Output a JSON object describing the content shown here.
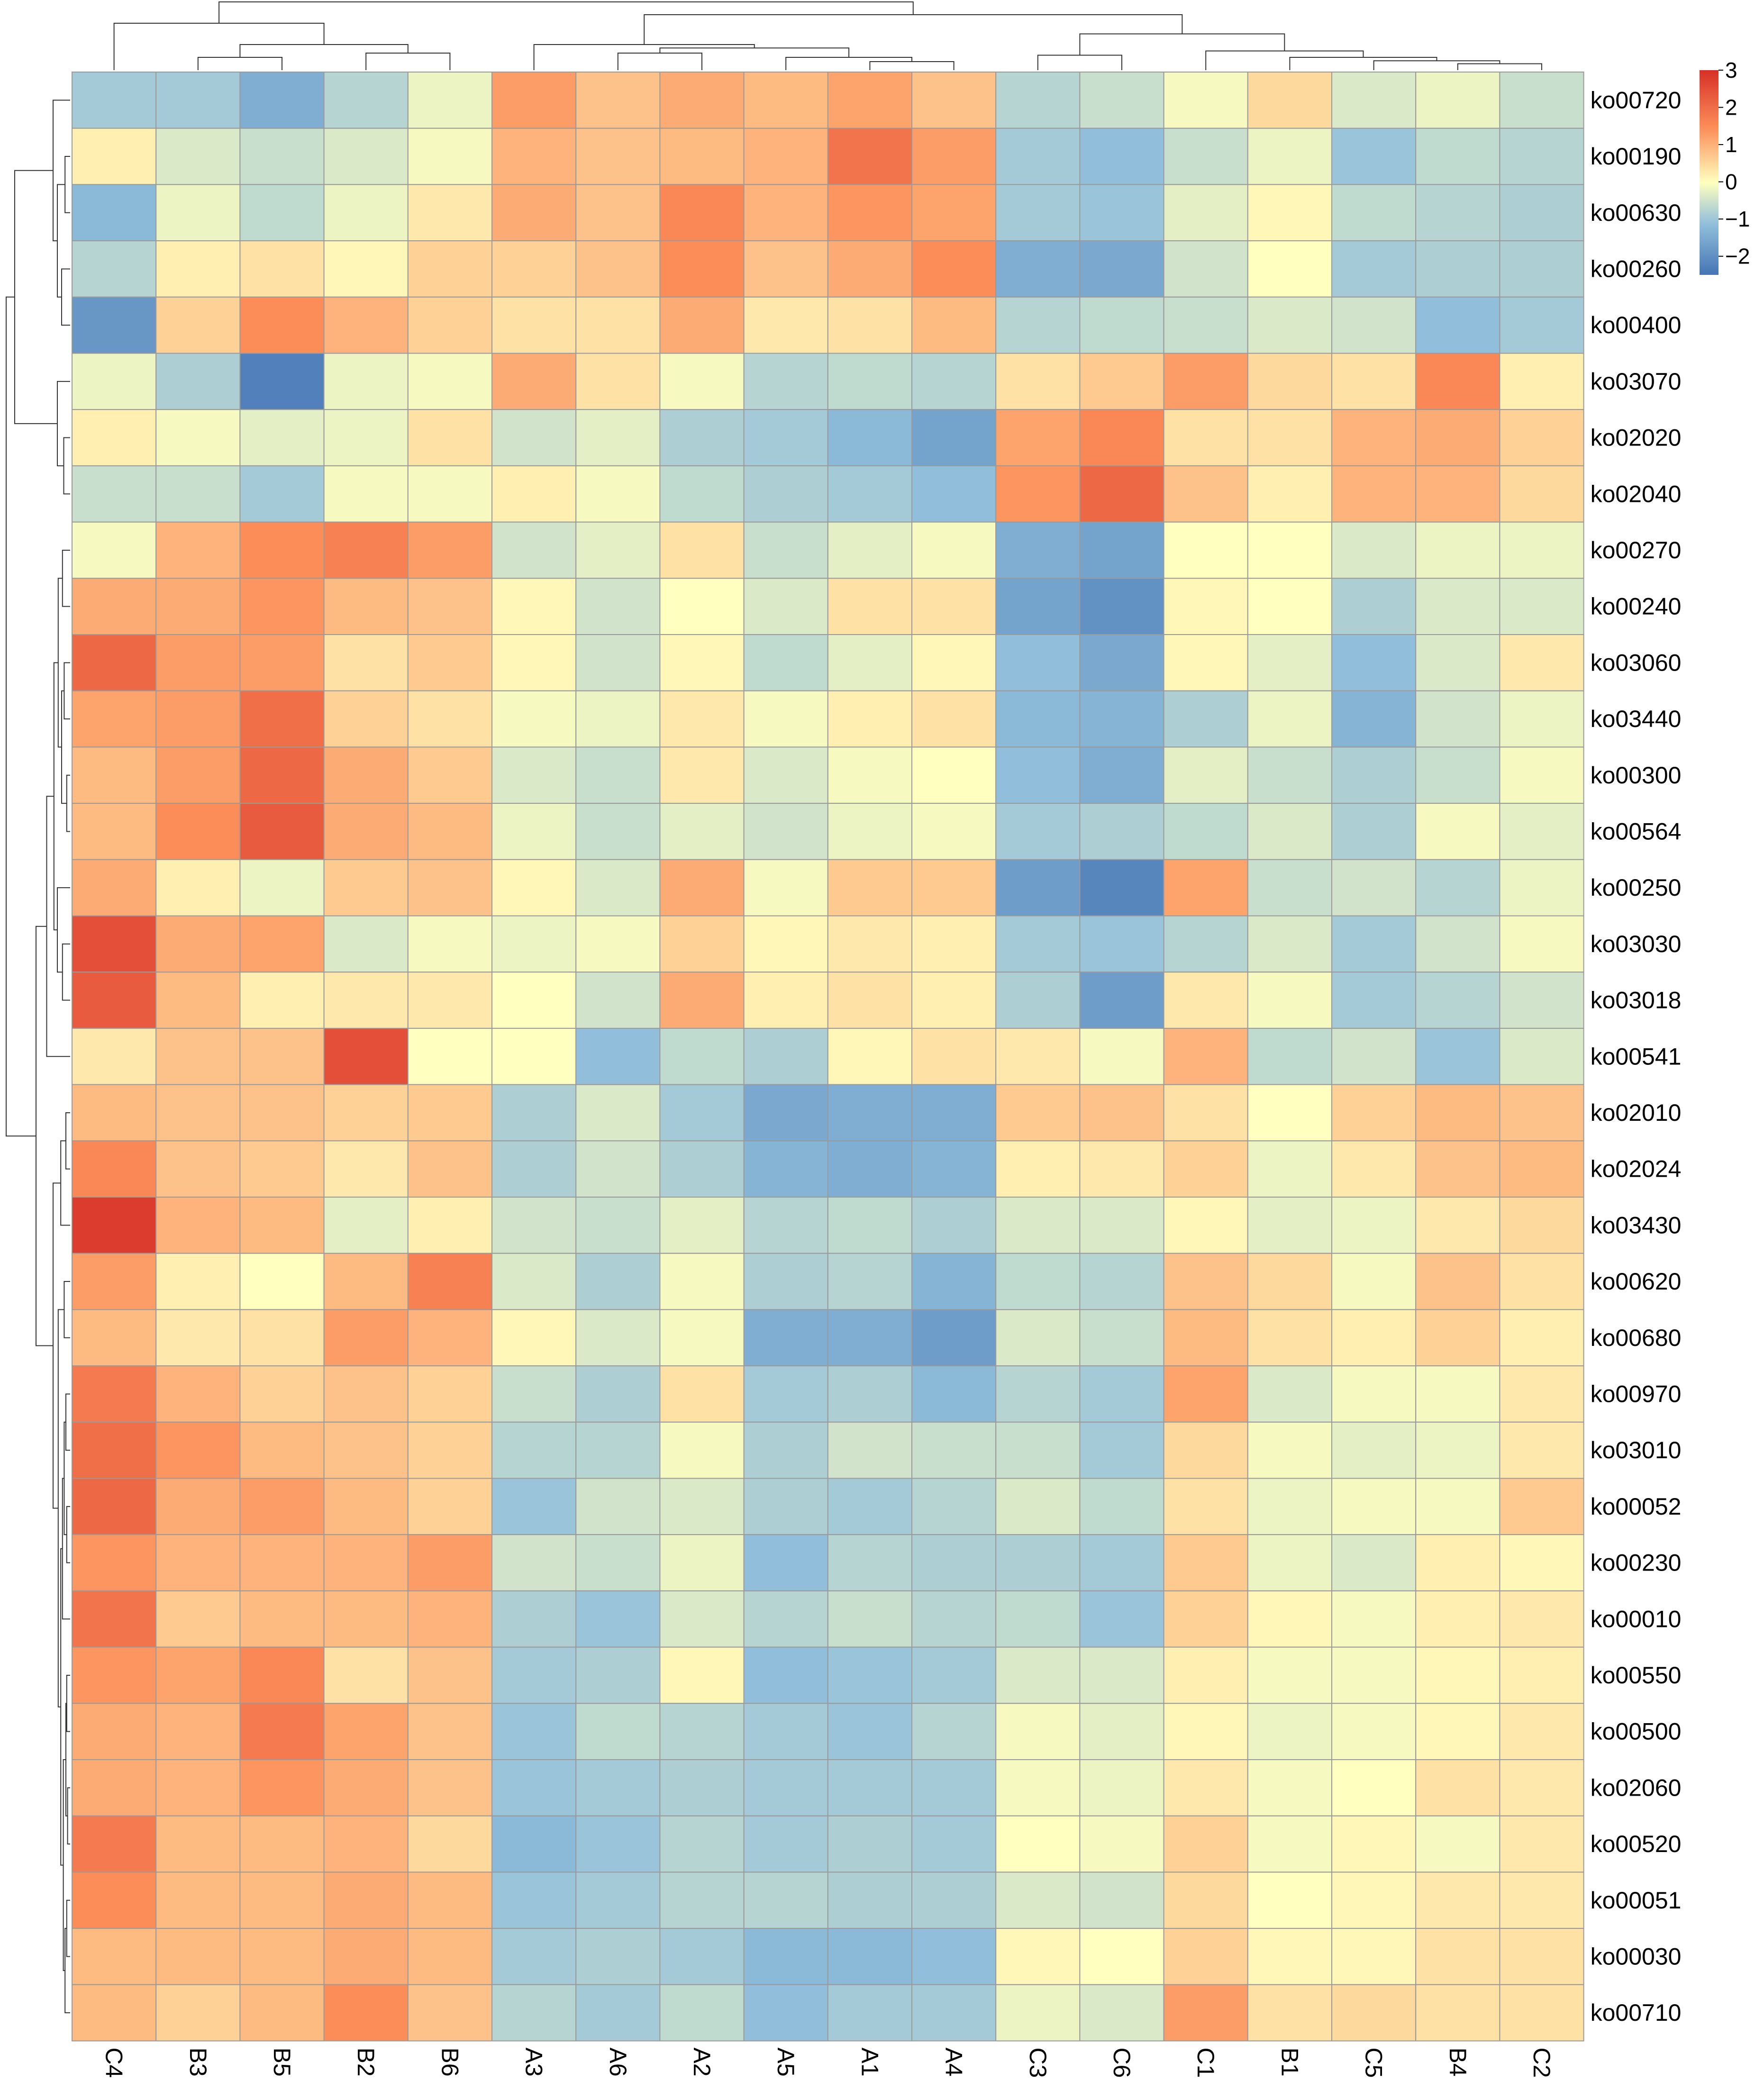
{
  "chart_data": {
    "type": "heatmap",
    "title": "",
    "xlabel": "",
    "ylabel": "",
    "columns": [
      "C4",
      "B3",
      "B5",
      "B2",
      "B6",
      "A3",
      "A6",
      "A2",
      "A5",
      "A1",
      "A4",
      "C3",
      "C6",
      "C1",
      "B1",
      "C5",
      "B4",
      "C2"
    ],
    "rows": [
      "ko00720",
      "ko00190",
      "ko00630",
      "ko00260",
      "ko00400",
      "ko03070",
      "ko02020",
      "ko02040",
      "ko00270",
      "ko00240",
      "ko03060",
      "ko03440",
      "ko00300",
      "ko00564",
      "ko00250",
      "ko03030",
      "ko03018",
      "ko00541",
      "ko02010",
      "ko02024",
      "ko03430",
      "ko00620",
      "ko00680",
      "ko00970",
      "ko03010",
      "ko00052",
      "ko00230",
      "ko00010",
      "ko00550",
      "ko00500",
      "ko02060",
      "ko00520",
      "ko00051",
      "ko00030",
      "ko00710"
    ],
    "values": [
      [
        -1.0,
        -1.0,
        -1.5,
        -0.8,
        -0.2,
        1.3,
        0.8,
        1.1,
        0.9,
        1.2,
        0.8,
        -0.8,
        -0.6,
        -0.1,
        0.5,
        -0.4,
        -0.2,
        -0.6
      ],
      [
        0.2,
        -0.4,
        -0.6,
        -0.4,
        -0.1,
        1.0,
        0.8,
        0.9,
        1.0,
        1.9,
        1.3,
        -1.0,
        -1.2,
        -0.6,
        -0.2,
        -1.1,
        -0.7,
        -0.8
      ],
      [
        -1.3,
        -0.2,
        -0.7,
        -0.2,
        0.3,
        1.1,
        0.8,
        1.6,
        1.0,
        1.4,
        1.2,
        -1.0,
        -1.1,
        -0.3,
        0.1,
        -0.7,
        -0.8,
        -0.9
      ],
      [
        -0.8,
        0.2,
        0.4,
        0.1,
        0.6,
        0.6,
        0.8,
        1.5,
        0.8,
        1.1,
        1.5,
        -1.5,
        -1.6,
        -0.5,
        0.0,
        -1.0,
        -0.9,
        -0.9
      ],
      [
        -1.9,
        0.6,
        1.5,
        1.0,
        0.6,
        0.4,
        0.4,
        1.1,
        0.3,
        0.4,
        0.9,
        -0.8,
        -0.7,
        -0.6,
        -0.4,
        -0.5,
        -1.2,
        -1.0
      ],
      [
        -0.2,
        -0.9,
        -2.3,
        -0.2,
        -0.1,
        1.1,
        0.4,
        -0.1,
        -0.8,
        -0.7,
        -0.8,
        0.4,
        0.7,
        1.3,
        0.5,
        0.4,
        1.6,
        0.2
      ],
      [
        0.2,
        -0.1,
        -0.3,
        -0.2,
        0.4,
        -0.5,
        -0.3,
        -0.9,
        -1.0,
        -1.3,
        -1.7,
        1.2,
        1.6,
        0.4,
        0.4,
        1.0,
        1.1,
        0.6
      ],
      [
        -0.6,
        -0.6,
        -1.0,
        -0.1,
        -0.1,
        0.2,
        -0.1,
        -0.7,
        -0.9,
        -1.0,
        -1.2,
        1.4,
        2.1,
        0.8,
        0.2,
        1.0,
        1.0,
        0.5
      ],
      [
        -0.1,
        1.0,
        1.5,
        1.7,
        1.3,
        -0.5,
        -0.3,
        0.4,
        -0.6,
        -0.3,
        -0.1,
        -1.5,
        -1.7,
        0.0,
        0.0,
        -0.4,
        -0.2,
        -0.2
      ],
      [
        1.1,
        1.1,
        1.4,
        0.9,
        0.8,
        0.1,
        -0.5,
        0.0,
        -0.4,
        0.4,
        0.4,
        -1.7,
        -2.0,
        0.1,
        0.0,
        -0.9,
        -0.4,
        -0.4
      ],
      [
        2.1,
        1.3,
        1.3,
        0.4,
        0.7,
        0.1,
        -0.5,
        0.1,
        -0.7,
        -0.3,
        0.1,
        -1.2,
        -1.6,
        0.1,
        -0.3,
        -1.2,
        -0.4,
        0.3
      ],
      [
        1.2,
        1.3,
        2.0,
        0.6,
        0.4,
        -0.1,
        -0.2,
        0.3,
        -0.1,
        0.2,
        0.4,
        -1.3,
        -1.4,
        -0.9,
        -0.2,
        -1.4,
        -0.5,
        -0.2
      ],
      [
        0.9,
        1.3,
        2.1,
        1.1,
        0.7,
        -0.4,
        -0.6,
        0.3,
        -0.4,
        -0.1,
        0.0,
        -1.2,
        -1.5,
        -0.3,
        -0.6,
        -0.9,
        -0.6,
        -0.1
      ],
      [
        0.9,
        1.5,
        2.3,
        1.1,
        0.9,
        -0.2,
        -0.6,
        -0.3,
        -0.5,
        -0.2,
        -0.1,
        -1.0,
        -0.9,
        -0.7,
        -0.4,
        -0.9,
        -0.1,
        -0.3
      ],
      [
        1.1,
        0.2,
        -0.2,
        0.7,
        0.8,
        0.1,
        -0.4,
        1.1,
        -0.1,
        0.7,
        0.7,
        -1.8,
        -2.2,
        1.2,
        -0.6,
        -0.5,
        -0.8,
        -0.2
      ],
      [
        2.5,
        1.1,
        1.2,
        -0.4,
        -0.1,
        -0.2,
        -0.1,
        0.6,
        0.1,
        0.3,
        0.2,
        -1.0,
        -1.1,
        -0.8,
        -0.4,
        -1.0,
        -0.5,
        -0.1
      ],
      [
        2.3,
        0.9,
        0.2,
        0.3,
        0.3,
        0.0,
        -0.5,
        1.1,
        0.2,
        0.4,
        0.2,
        -0.9,
        -1.8,
        0.3,
        -0.1,
        -1.0,
        -0.8,
        -0.5
      ],
      [
        0.3,
        0.8,
        0.8,
        2.5,
        0.0,
        0.0,
        -1.2,
        -0.7,
        -0.9,
        0.1,
        0.4,
        0.3,
        -0.1,
        1.0,
        -0.7,
        -0.5,
        -1.1,
        -0.4
      ],
      [
        0.9,
        0.8,
        0.8,
        0.6,
        0.7,
        -0.9,
        -0.4,
        -1.0,
        -1.6,
        -1.5,
        -1.5,
        0.7,
        0.8,
        0.4,
        0.0,
        0.6,
        0.9,
        0.8
      ],
      [
        1.6,
        0.8,
        0.7,
        0.3,
        0.8,
        -0.9,
        -0.5,
        -0.9,
        -1.4,
        -1.5,
        -1.4,
        0.2,
        0.3,
        0.6,
        -0.2,
        0.3,
        0.8,
        0.9
      ],
      [
        2.8,
        1.0,
        0.9,
        -0.3,
        0.2,
        -0.5,
        -0.6,
        -0.3,
        -0.8,
        -0.7,
        -0.9,
        -0.4,
        -0.4,
        0.1,
        -0.3,
        -0.2,
        0.3,
        0.5
      ],
      [
        1.3,
        0.2,
        0.0,
        0.9,
        1.7,
        -0.4,
        -0.9,
        -0.1,
        -0.9,
        -0.8,
        -1.4,
        -0.7,
        -0.8,
        0.8,
        0.5,
        -0.1,
        0.8,
        0.4
      ],
      [
        0.9,
        0.3,
        0.4,
        1.3,
        1.0,
        0.1,
        -0.4,
        -0.1,
        -1.5,
        -1.5,
        -1.8,
        -0.4,
        -0.6,
        0.9,
        0.4,
        0.2,
        0.6,
        0.2
      ],
      [
        1.8,
        1.0,
        0.6,
        0.8,
        0.6,
        -0.6,
        -0.9,
        0.4,
        -1.0,
        -0.9,
        -1.3,
        -0.8,
        -1.0,
        1.2,
        -0.4,
        -0.1,
        -0.1,
        0.3
      ],
      [
        2.0,
        1.4,
        0.9,
        0.8,
        0.6,
        -0.8,
        -0.8,
        -0.1,
        -0.9,
        -0.5,
        -0.6,
        -0.6,
        -1.0,
        0.5,
        -0.1,
        -0.3,
        -0.2,
        0.3
      ],
      [
        2.1,
        1.1,
        1.3,
        0.9,
        0.6,
        -1.1,
        -0.5,
        -0.4,
        -0.9,
        -1.0,
        -0.8,
        -0.4,
        -0.7,
        0.4,
        -0.2,
        -0.1,
        -0.1,
        0.7
      ],
      [
        1.4,
        1.0,
        1.0,
        1.0,
        1.3,
        -0.5,
        -0.6,
        -0.2,
        -1.2,
        -0.8,
        -0.9,
        -0.9,
        -1.0,
        0.7,
        -0.2,
        -0.4,
        0.2,
        0.1
      ],
      [
        1.9,
        0.7,
        0.9,
        0.9,
        1.0,
        -0.9,
        -1.1,
        -0.4,
        -0.8,
        -0.6,
        -0.8,
        -0.7,
        -1.1,
        0.6,
        0.1,
        -0.1,
        0.2,
        0.3
      ],
      [
        1.4,
        1.2,
        1.6,
        0.4,
        0.8,
        -1.0,
        -0.9,
        0.1,
        -1.2,
        -1.1,
        -1.0,
        -0.4,
        -0.4,
        0.2,
        -0.1,
        -0.1,
        0.1,
        0.2
      ],
      [
        1.1,
        1.0,
        1.8,
        1.2,
        0.8,
        -1.1,
        -0.7,
        -0.8,
        -1.0,
        -1.1,
        -0.8,
        -0.1,
        -0.3,
        0.1,
        -0.2,
        -0.1,
        0.1,
        0.3
      ],
      [
        1.1,
        1.0,
        1.4,
        1.1,
        0.8,
        -1.1,
        -1.0,
        -0.9,
        -1.0,
        -1.0,
        -1.0,
        -0.1,
        -0.2,
        0.3,
        -0.1,
        0.0,
        0.4,
        0.3
      ],
      [
        1.8,
        0.9,
        0.9,
        1.0,
        0.5,
        -1.3,
        -1.1,
        -0.8,
        -1.0,
        -0.9,
        -1.0,
        0.0,
        -0.1,
        0.6,
        -0.1,
        0.1,
        -0.1,
        0.3
      ],
      [
        1.5,
        0.9,
        0.9,
        1.1,
        0.9,
        -1.1,
        -1.0,
        -0.8,
        -0.8,
        -0.9,
        -0.9,
        -0.4,
        -0.5,
        0.5,
        0.0,
        0.1,
        0.3,
        0.3
      ],
      [
        0.9,
        0.9,
        0.9,
        1.1,
        0.9,
        -1.0,
        -0.9,
        -1.0,
        -1.3,
        -1.3,
        -1.2,
        0.1,
        0.0,
        0.6,
        0.1,
        0.1,
        0.4,
        0.4
      ],
      [
        0.9,
        0.6,
        0.9,
        1.5,
        0.8,
        -0.8,
        -1.0,
        -0.7,
        -1.2,
        -1.0,
        -1.0,
        -0.2,
        -0.4,
        1.3,
        0.4,
        0.5,
        0.4,
        0.4
      ]
    ],
    "color_scale": {
      "min": -2.5,
      "max": 3,
      "low": "#4575b4",
      "mid": "#ffffbf",
      "high": "#d73027"
    },
    "legend": {
      "ticks": [
        3,
        2,
        1,
        0,
        -1,
        -2
      ],
      "tick_labels": [
        "3",
        "2",
        "1",
        "0",
        "−1",
        "−2"
      ],
      "placement": "top-right"
    },
    "column_dendrogram": true,
    "row_dendrogram": true,
    "grid": true
  }
}
